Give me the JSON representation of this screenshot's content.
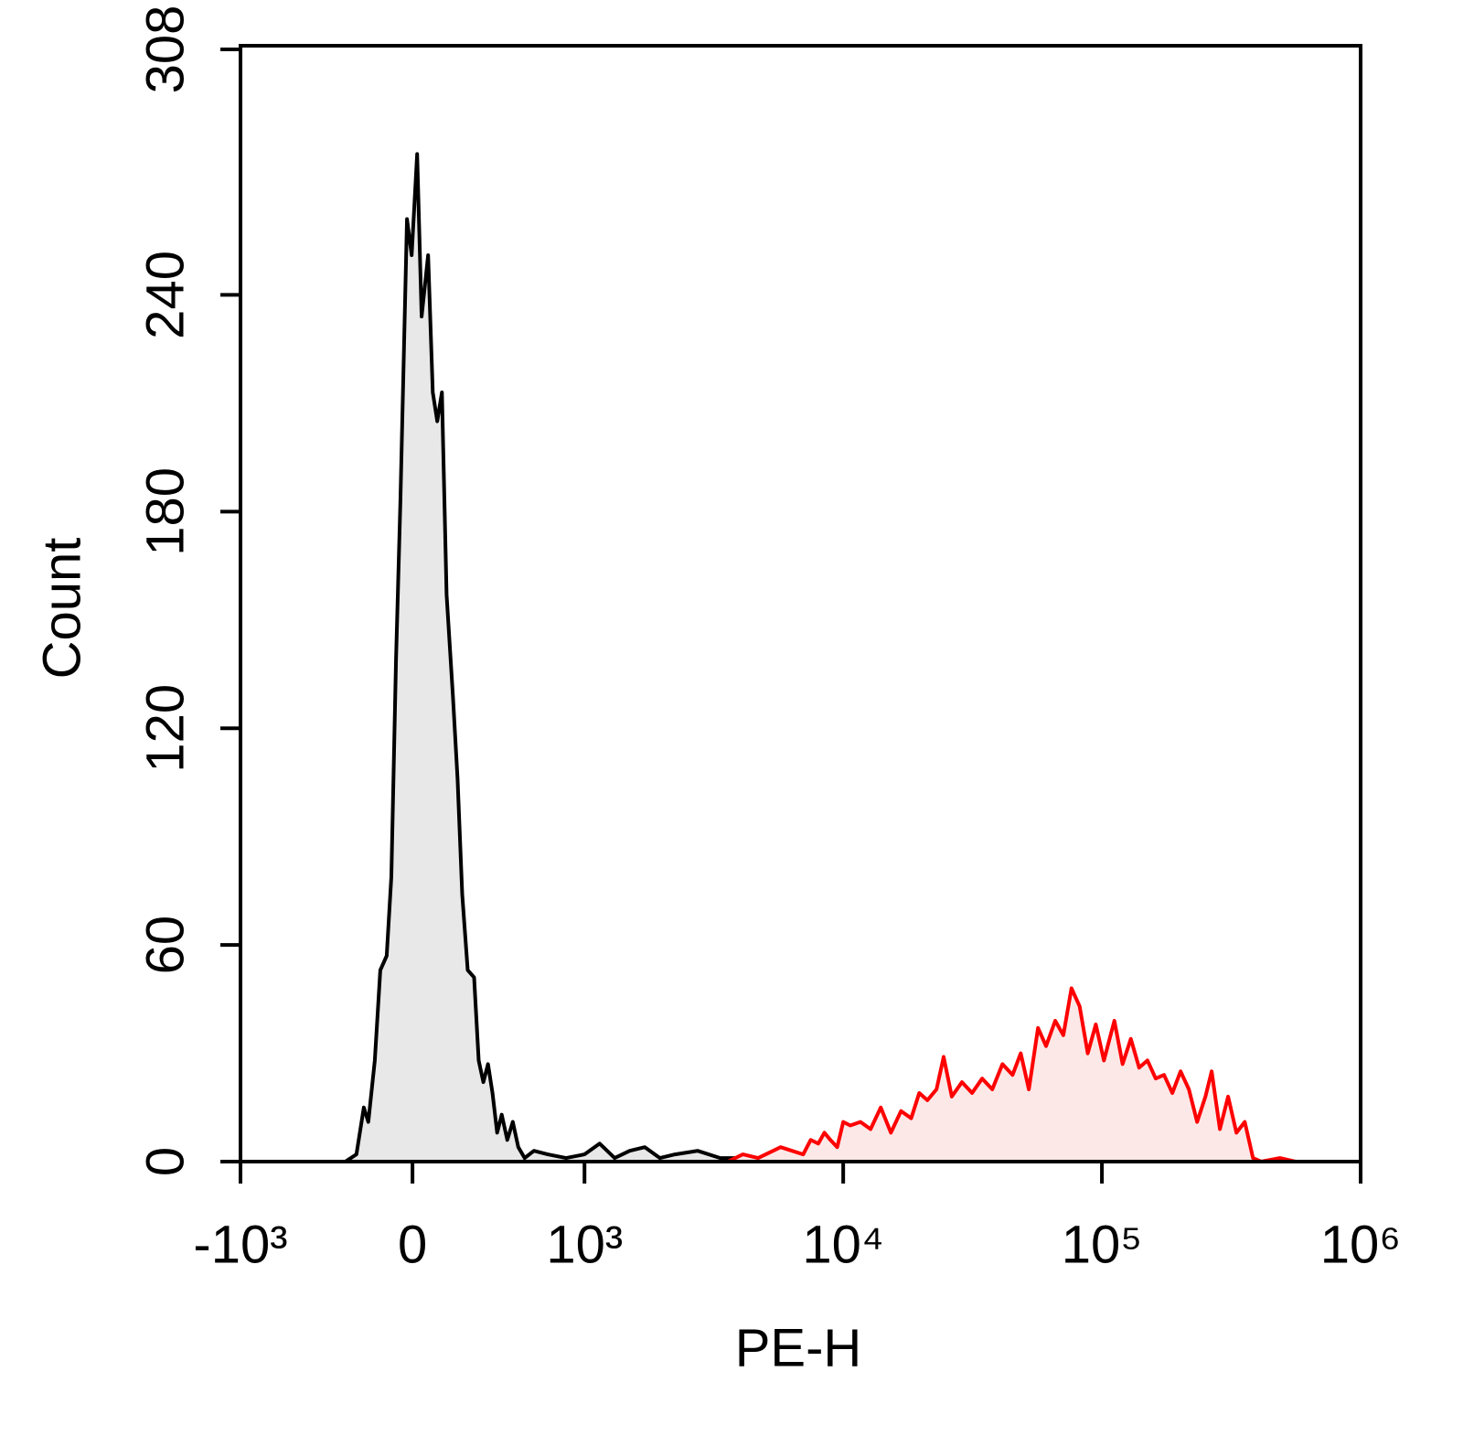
{
  "chart_data": {
    "type": "histogram-overlay",
    "x_label": "PE-H",
    "y_label": "Count",
    "xscale": "biexponential",
    "xlim": [
      -1000,
      1000000
    ],
    "xticks": [
      {
        "value": -1000,
        "label": "-10³"
      },
      0,
      {
        "value": 1000,
        "label": "10³"
      },
      {
        "value": 10000,
        "label": "10⁴"
      },
      {
        "value": 100000,
        "label": "10⁵"
      },
      {
        "value": 1000000,
        "label": "10⁶"
      }
    ],
    "ylim": [
      0,
      309
    ],
    "yticks": [
      0,
      60,
      120,
      180,
      240,
      308
    ],
    "series": [
      {
        "color": "#000000",
        "fill": "#e8e8e8",
        "x": [
          -390,
          -326,
          -283,
          -257,
          -219,
          -187,
          -150,
          -123,
          -96,
          -70,
          -32,
          -5,
          27,
          53,
          91,
          118,
          144,
          171,
          198,
          235,
          262,
          289,
          321,
          358,
          385,
          412,
          439,
          465,
          492,
          519,
          551,
          583,
          615,
          652,
          706,
          786,
          893,
          1000,
          1144,
          1308,
          1496,
          1711,
          1956,
          2237,
          2737,
          3347,
          4093,
          5005,
          6122,
          7490
        ],
        "values": [
          0,
          2,
          15,
          11,
          28,
          53,
          57,
          79,
          139,
          183,
          261,
          251,
          279,
          234,
          251,
          213,
          205,
          213,
          157,
          129,
          106,
          74,
          53,
          51,
          28,
          22,
          27,
          19,
          8,
          13,
          6,
          11,
          4,
          1,
          3,
          2,
          1,
          2,
          5,
          1,
          3,
          4,
          1,
          2,
          3,
          1,
          1,
          1,
          1,
          0
        ]
      },
      {
        "color": "#ff0000",
        "fill": "#fde8e8",
        "x": [
          3581,
          4093,
          4689,
          5358,
          5728,
          6338,
          7003,
          7490,
          8014,
          8458,
          8916,
          9477,
          10000,
          10650,
          11660,
          12760,
          13970,
          15290,
          16730,
          18310,
          19680,
          21160,
          22950,
          24450,
          26280,
          28760,
          31480,
          34450,
          37710,
          41270,
          45170,
          48570,
          52200,
          56610,
          60850,
          66000,
          70960,
          76280,
          81990,
          88130,
          94740,
          101850,
          111700,
          120200,
          129400,
          139300,
          150000,
          161400,
          173800,
          187100,
          201400,
          216800,
          233300,
          251200,
          265500,
          285800,
          307600,
          331100,
          356500,
          383700,
          413000,
          487500,
          559800
        ],
        "values": [
          0,
          2,
          1,
          3,
          4,
          3,
          2,
          6,
          5,
          8,
          6,
          4,
          11,
          10,
          11,
          9,
          15,
          8,
          14,
          12,
          19,
          17,
          20,
          29,
          18,
          22,
          19,
          23,
          20,
          27,
          24,
          30,
          20,
          37,
          32,
          39,
          35,
          48,
          43,
          30,
          38,
          28,
          39,
          27,
          34,
          26,
          28,
          23,
          24,
          19,
          25,
          20,
          11,
          18,
          25,
          9,
          18,
          8,
          11,
          1,
          0,
          1,
          0
        ]
      }
    ]
  }
}
